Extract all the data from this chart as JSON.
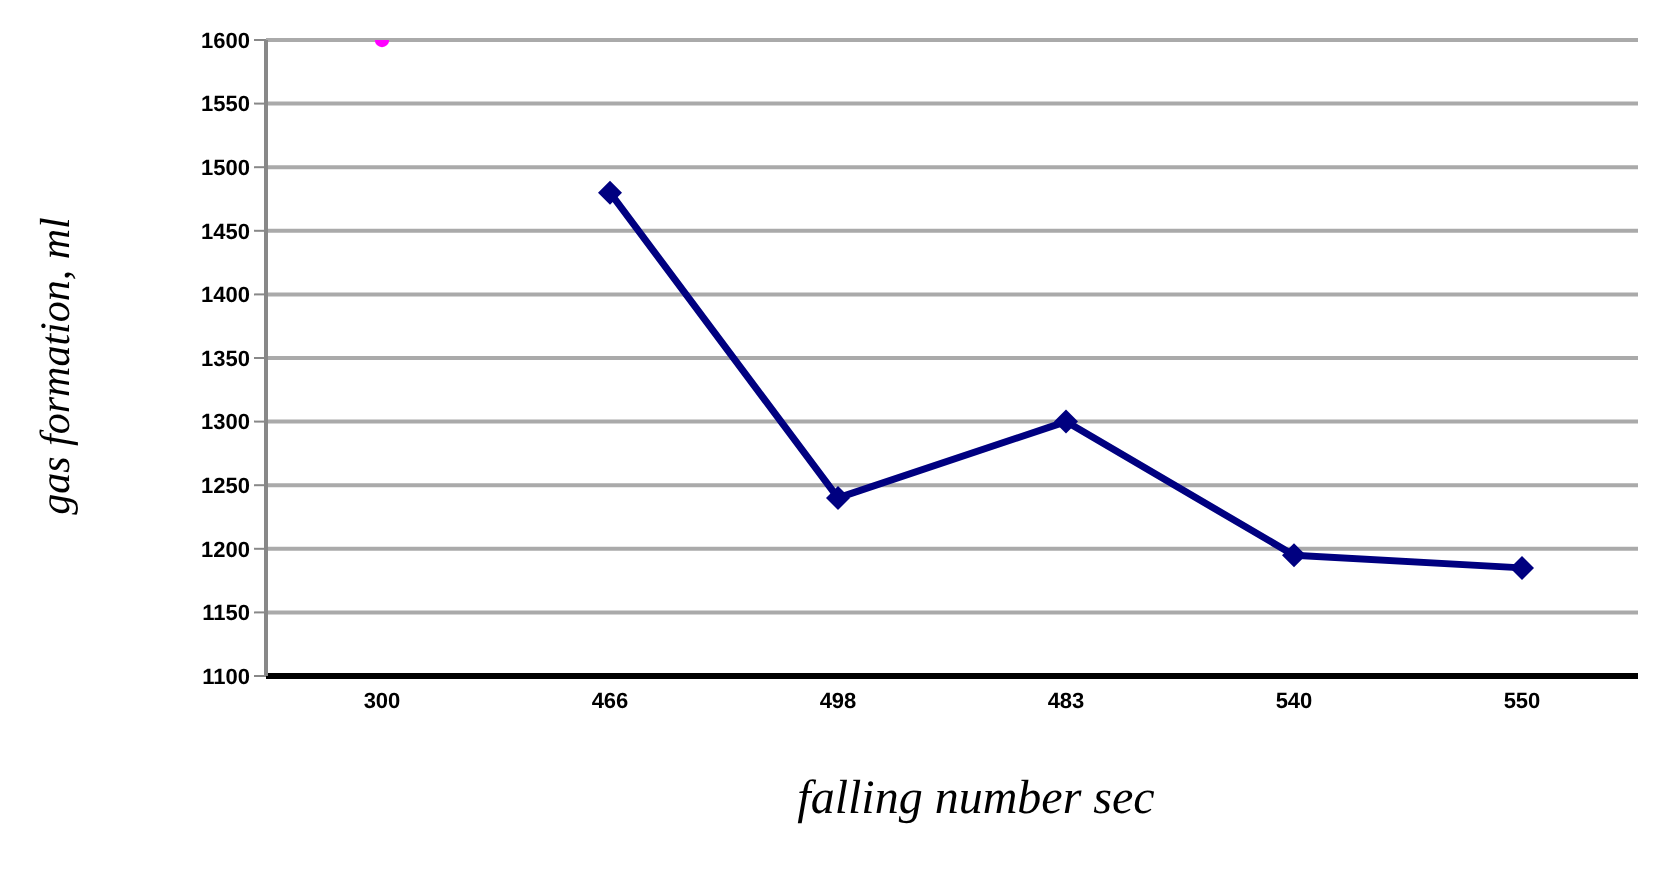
{
  "chart_data": {
    "type": "line",
    "xlabel": "falling number sec",
    "ylabel": "gas formation, ml",
    "categories": [
      "300",
      "466",
      "498",
      "483",
      "540",
      "550"
    ],
    "series": [
      {
        "color": "#000080",
        "values": [
          null,
          1480,
          1240,
          1300,
          1195,
          1185
        ],
        "marker": "diamond"
      },
      {
        "type": "scatter",
        "color": "#ff00ff",
        "values": [
          1600,
          null,
          null,
          null,
          null,
          null
        ],
        "marker": "circle"
      }
    ],
    "ylim": [
      1100,
      1600
    ],
    "yticks": [
      1100,
      1150,
      1200,
      1250,
      1300,
      1350,
      1400,
      1450,
      1500,
      1550,
      1600
    ],
    "grid": "y"
  }
}
